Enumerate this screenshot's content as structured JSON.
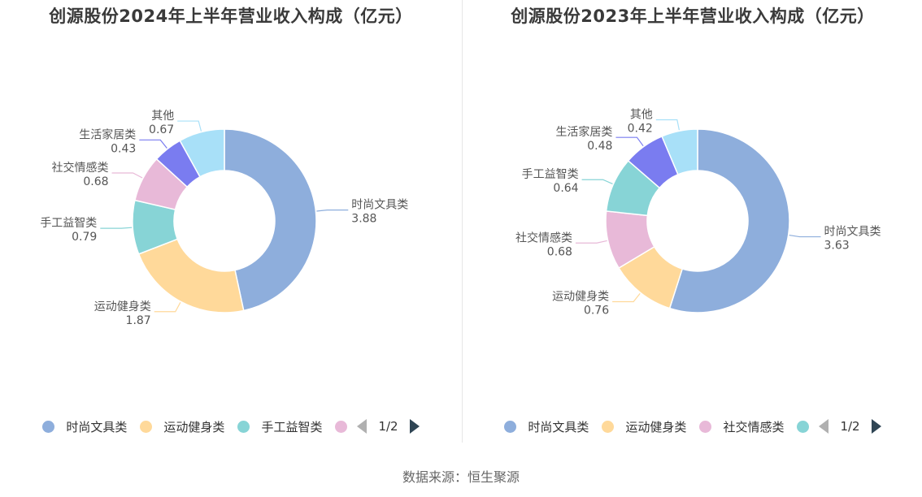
{
  "colors": [
    "#8eaedc",
    "#ffd99a",
    "#87d4d6",
    "#e8b9d8",
    "#7a7cf0",
    "#a8e0f8"
  ],
  "source": "数据来源：恒生聚源",
  "chart_data": [
    {
      "type": "pie",
      "style": "donut",
      "title": "创源股份2024年上半年营业收入构成（亿元）",
      "slices": [
        {
          "label": "时尚文具类",
          "value": 3.88
        },
        {
          "label": "运动健身类",
          "value": 1.87
        },
        {
          "label": "手工益智类",
          "value": 0.79
        },
        {
          "label": "社交情感类",
          "value": 0.68
        },
        {
          "label": "生活家居类",
          "value": 0.43
        },
        {
          "label": "其他",
          "value": 0.67
        }
      ],
      "legend": {
        "position": "bottom",
        "visible_labels": [
          "时尚文具类",
          "运动健身类",
          "手工益智类"
        ],
        "page": "1/2"
      }
    },
    {
      "type": "pie",
      "style": "donut",
      "title": "创源股份2023年上半年营业收入构成（亿元）",
      "slices": [
        {
          "label": "时尚文具类",
          "value": 3.63
        },
        {
          "label": "运动健身类",
          "value": 0.76
        },
        {
          "label": "社交情感类",
          "value": 0.68
        },
        {
          "label": "手工益智类",
          "value": 0.64
        },
        {
          "label": "生活家居类",
          "value": 0.48
        },
        {
          "label": "其他",
          "value": 0.42
        }
      ],
      "legend": {
        "position": "bottom",
        "visible_labels": [
          "时尚文具类",
          "运动健身类",
          "社交情感类"
        ],
        "page": "1/2"
      }
    }
  ]
}
